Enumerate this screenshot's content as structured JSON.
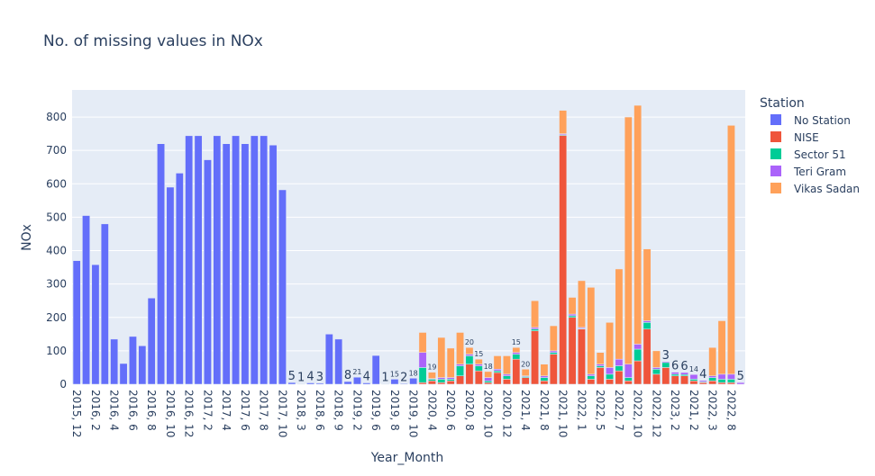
{
  "chart_data": {
    "type": "stacked_bar",
    "title": "No. of missing values in NOx",
    "x_label": "Year_Month",
    "y_label": "NOx",
    "legend_title": "Station",
    "legend_position": "right",
    "categories": [
      "2015, 12",
      null,
      "2016, 2",
      null,
      "2016, 4",
      null,
      "2016, 6",
      null,
      "2016, 8",
      null,
      "2016, 10",
      null,
      "2016, 12",
      null,
      "2017, 2",
      null,
      "2017, 4",
      null,
      "2017, 6",
      null,
      "2017, 8",
      null,
      "2017, 10",
      null,
      "2018, 3",
      null,
      "2018, 6",
      null,
      "2018, 9",
      null,
      "2019, 2",
      null,
      "2019, 6",
      null,
      "2019, 8",
      null,
      "2019, 10",
      null,
      "2020, 4",
      null,
      "2020, 6",
      null,
      "2020, 8",
      null,
      "2020, 10",
      null,
      "2020, 12",
      null,
      "2021, 4",
      null,
      "2021, 8",
      null,
      "2021, 10",
      null,
      "2022, 1",
      null,
      "2022, 5",
      null,
      "2022, 7",
      null,
      "2022, 10",
      null,
      "2022, 12",
      null,
      "2023, 2",
      null,
      "2021, 2",
      null,
      "2022, 3",
      null,
      "2022, 8",
      null
    ],
    "series": [
      {
        "name": "No Station",
        "color": "#636efa",
        "values": [
          370,
          505,
          358,
          480,
          135,
          62,
          143,
          115,
          258,
          720,
          590,
          632,
          744,
          744,
          672,
          744,
          720,
          744,
          720,
          744,
          744,
          716,
          582,
          5,
          1,
          4,
          3,
          150,
          135,
          8,
          21,
          4,
          86,
          1,
          15,
          2,
          18,
          null,
          null,
          null,
          null,
          null,
          null,
          null,
          null,
          null,
          null,
          null,
          null,
          null,
          null,
          null,
          null,
          null,
          null,
          null,
          null,
          null,
          null,
          null,
          null,
          null,
          null,
          null,
          null,
          null,
          null,
          null,
          null,
          null,
          null,
          null
        ]
      },
      {
        "name": "NISE",
        "color": "#EF553B",
        "values": [
          null,
          null,
          null,
          null,
          null,
          null,
          null,
          null,
          null,
          null,
          null,
          null,
          null,
          null,
          null,
          null,
          null,
          null,
          null,
          null,
          null,
          null,
          null,
          null,
          null,
          null,
          null,
          null,
          null,
          null,
          null,
          null,
          null,
          null,
          null,
          null,
          null,
          5,
          10,
          5,
          10,
          25,
          60,
          40,
          5,
          35,
          15,
          75,
          20,
          160,
          10,
          90,
          745,
          200,
          165,
          15,
          50,
          15,
          40,
          10,
          70,
          165,
          30,
          50,
          25,
          25,
          10,
          5,
          10,
          5,
          5,
          null
        ]
      },
      {
        "name": "Sector 51",
        "color": "#00cc96",
        "values": [
          null,
          null,
          null,
          null,
          null,
          null,
          null,
          null,
          null,
          null,
          null,
          null,
          null,
          null,
          null,
          null,
          null,
          null,
          null,
          null,
          null,
          null,
          null,
          null,
          null,
          null,
          null,
          null,
          null,
          null,
          null,
          null,
          null,
          null,
          null,
          null,
          null,
          45,
          5,
          10,
          5,
          30,
          25,
          15,
          5,
          5,
          10,
          15,
          3,
          5,
          10,
          5,
          2,
          5,
          2,
          10,
          5,
          15,
          15,
          10,
          35,
          20,
          15,
          15,
          5,
          4,
          5,
          2,
          10,
          10,
          10,
          null
        ]
      },
      {
        "name": "Teri Gram",
        "color": "#ab63fa",
        "values": [
          null,
          null,
          null,
          null,
          null,
          null,
          null,
          null,
          null,
          null,
          null,
          null,
          null,
          null,
          null,
          null,
          null,
          null,
          null,
          null,
          null,
          null,
          null,
          null,
          null,
          null,
          null,
          null,
          null,
          null,
          null,
          null,
          null,
          null,
          null,
          null,
          null,
          45,
          2,
          5,
          5,
          5,
          5,
          5,
          10,
          5,
          5,
          5,
          2,
          5,
          5,
          5,
          3,
          5,
          3,
          5,
          5,
          20,
          20,
          40,
          15,
          5,
          5,
          3,
          6,
          6,
          14,
          4,
          5,
          15,
          15,
          5
        ]
      },
      {
        "name": "Vikas Sadan",
        "color": "#FFA15A",
        "values": [
          null,
          null,
          null,
          null,
          null,
          null,
          null,
          null,
          null,
          null,
          null,
          null,
          null,
          null,
          null,
          null,
          null,
          null,
          null,
          null,
          null,
          null,
          null,
          null,
          null,
          null,
          null,
          null,
          null,
          null,
          null,
          null,
          null,
          null,
          null,
          null,
          null,
          60,
          19,
          120,
          88,
          95,
          20,
          15,
          18,
          40,
          55,
          15,
          20,
          80,
          35,
          75,
          70,
          50,
          140,
          260,
          35,
          135,
          270,
          740,
          715,
          215,
          50,
          null,
          null,
          null,
          null,
          null,
          85,
          160,
          745,
          null
        ]
      }
    ],
    "ylim": [
      0,
      881
    ],
    "yticks": [
      0,
      100,
      200,
      300,
      400,
      500,
      600,
      700,
      800
    ],
    "grid": true
  }
}
